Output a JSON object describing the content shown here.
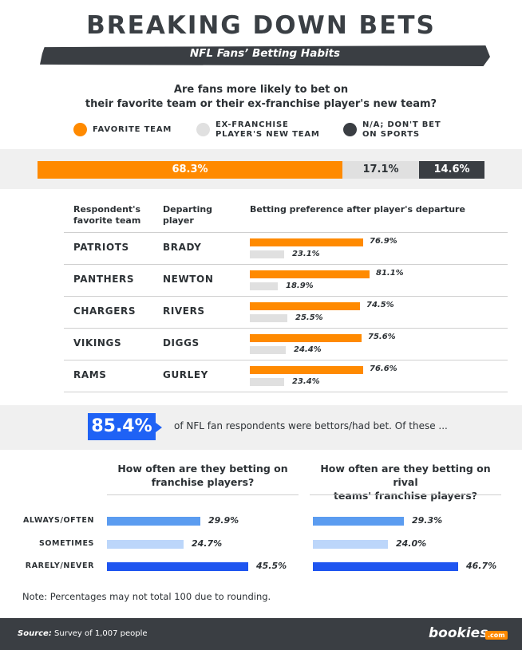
{
  "header": {
    "title": "BREAKING DOWN BETS",
    "subtitle": "NFL Fans’ Betting Habits"
  },
  "question": {
    "line1": "Are fans more likely to bet on",
    "line2": "their favorite team or their ex-franchise player's new team?"
  },
  "legend": {
    "items": [
      {
        "line1": "FAVORITE TEAM",
        "line2": "",
        "color": "#ff8a00"
      },
      {
        "line1": "EX-FRANCHISE",
        "line2": "PLAYER'S NEW TEAM",
        "color": "#e0e0e0"
      },
      {
        "line1": "N/A; DON'T BET",
        "line2": "ON SPORTS",
        "color": "#3a3e43"
      }
    ]
  },
  "colors": {
    "favorite": "#ff8a00",
    "ex_franchise": "#e0e0e0",
    "na": "#3a3e43",
    "blue_light": "#5b9cf0",
    "blue_pale": "#bcd6fa",
    "blue_dark": "#1f55f0"
  },
  "table": {
    "headers": {
      "team_line1": "Respondent's",
      "team_line2": "favorite team",
      "player_line1": "Departing",
      "player_line2": "player",
      "pref": "Betting preference after player's departure"
    }
  },
  "stat": {
    "value": "85.4%",
    "text": "of NFL fan respondents were bettors/had bet. Of these ..."
  },
  "freq": {
    "left_title_line1": "How often are they betting on",
    "left_title_line2": "franchise players?",
    "right_title_line1": "How often are they betting on rival",
    "right_title_line2": "teams' franchise players?"
  },
  "note": "Note: Percentages may not total 100 due to rounding.",
  "footer": {
    "source_label": "Source:",
    "source_text": "Survey of 1,007 people",
    "brand": "bookies",
    "brand_tld": ".com"
  },
  "chart_data": [
    {
      "type": "bar",
      "orientation": "horizontal-stacked",
      "categories": [
        "Favorite team",
        "Ex-franchise player's new team",
        "N/A; don't bet on sports"
      ],
      "values": [
        68.3,
        17.1,
        14.6
      ],
      "labels": [
        "68.3%",
        "17.1%",
        "14.6%"
      ]
    },
    {
      "type": "bar",
      "orientation": "horizontal",
      "rows": [
        {
          "team": "PATRIOTS",
          "player": "BRADY",
          "favorite": 76.9,
          "ex_franchise": 23.1,
          "favorite_label": "76.9%",
          "ex_label": "23.1%"
        },
        {
          "team": "PANTHERS",
          "player": "NEWTON",
          "favorite": 81.1,
          "ex_franchise": 18.9,
          "favorite_label": "81.1%",
          "ex_label": "18.9%"
        },
        {
          "team": "CHARGERS",
          "player": "RIVERS",
          "favorite": 74.5,
          "ex_franchise": 25.5,
          "favorite_label": "74.5%",
          "ex_label": "25.5%"
        },
        {
          "team": "VIKINGS",
          "player": "DIGGS",
          "favorite": 75.6,
          "ex_franchise": 24.4,
          "favorite_label": "75.6%",
          "ex_label": "24.4%"
        },
        {
          "team": "RAMS",
          "player": "GURLEY",
          "favorite": 76.6,
          "ex_franchise": 23.4,
          "favorite_label": "76.6%",
          "ex_label": "23.4%"
        }
      ]
    },
    {
      "type": "bar",
      "orientation": "horizontal",
      "categories": [
        "ALWAYS/OFTEN",
        "SOMETIMES",
        "RARELY/NEVER"
      ],
      "series": [
        {
          "values": [
            29.9,
            24.7,
            45.5
          ],
          "labels": [
            "29.9%",
            "24.7%",
            "45.5%"
          ]
        },
        {
          "values": [
            29.3,
            24.0,
            46.7
          ],
          "labels": [
            "29.3%",
            "24.0%",
            "46.7%"
          ]
        }
      ]
    }
  ]
}
